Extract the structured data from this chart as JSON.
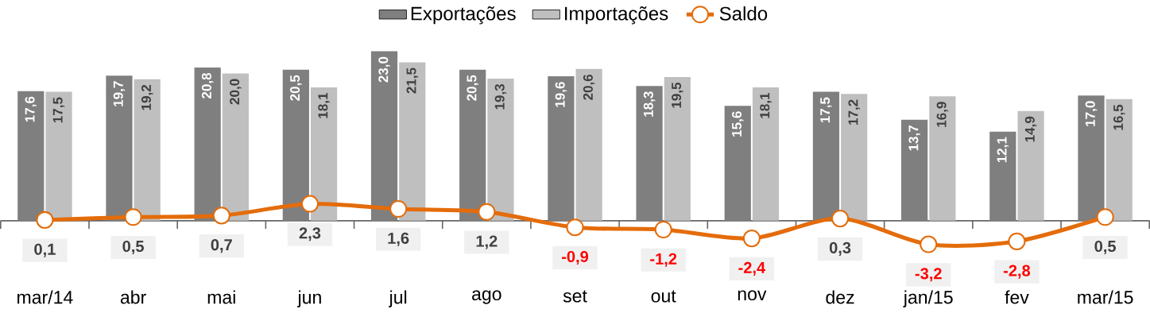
{
  "chart_data": {
    "type": "bar",
    "categories": [
      "mar/14",
      "abr",
      "mai",
      "jun",
      "jul",
      "ago",
      "set",
      "out",
      "nov",
      "dez",
      "jan/15",
      "fev",
      "mar/15"
    ],
    "series": [
      {
        "name": "Exportações",
        "color": "#7f7f7f",
        "values": [
          17.6,
          19.7,
          20.8,
          20.5,
          23.0,
          20.5,
          19.6,
          18.3,
          15.6,
          17.5,
          13.7,
          12.1,
          17.0
        ],
        "value_labels": [
          "17,6",
          "19,7",
          "20,8",
          "20,5",
          "23,0",
          "20,5",
          "19,6",
          "18,3",
          "15,6",
          "17,5",
          "13,7",
          "12,1",
          "17,0"
        ]
      },
      {
        "name": "Importações",
        "color": "#bfbfbf",
        "values": [
          17.5,
          19.2,
          20.0,
          18.1,
          21.5,
          19.3,
          20.6,
          19.5,
          18.1,
          17.2,
          16.9,
          14.9,
          16.5
        ],
        "value_labels": [
          "17,5",
          "19,2",
          "20,0",
          "18,1",
          "21,5",
          "19,3",
          "20,6",
          "19,5",
          "18,1",
          "17,2",
          "16,9",
          "14,9",
          "16,5"
        ]
      },
      {
        "name": "Saldo",
        "type": "line",
        "color": "#e46c0a",
        "marker": "circle",
        "values": [
          0.1,
          0.5,
          0.7,
          2.3,
          1.6,
          1.2,
          -0.9,
          -1.2,
          -2.4,
          0.3,
          -3.2,
          -2.8,
          0.5
        ],
        "value_labels": [
          "0,1",
          "0,5",
          "0,7",
          "2,3",
          "1,6",
          "1,2",
          "-0,9",
          "-1,2",
          "-2,4",
          "0,3",
          "-3,2",
          "-2,8",
          "0,5"
        ]
      }
    ],
    "legend": "top",
    "tick_labels": "x"
  }
}
